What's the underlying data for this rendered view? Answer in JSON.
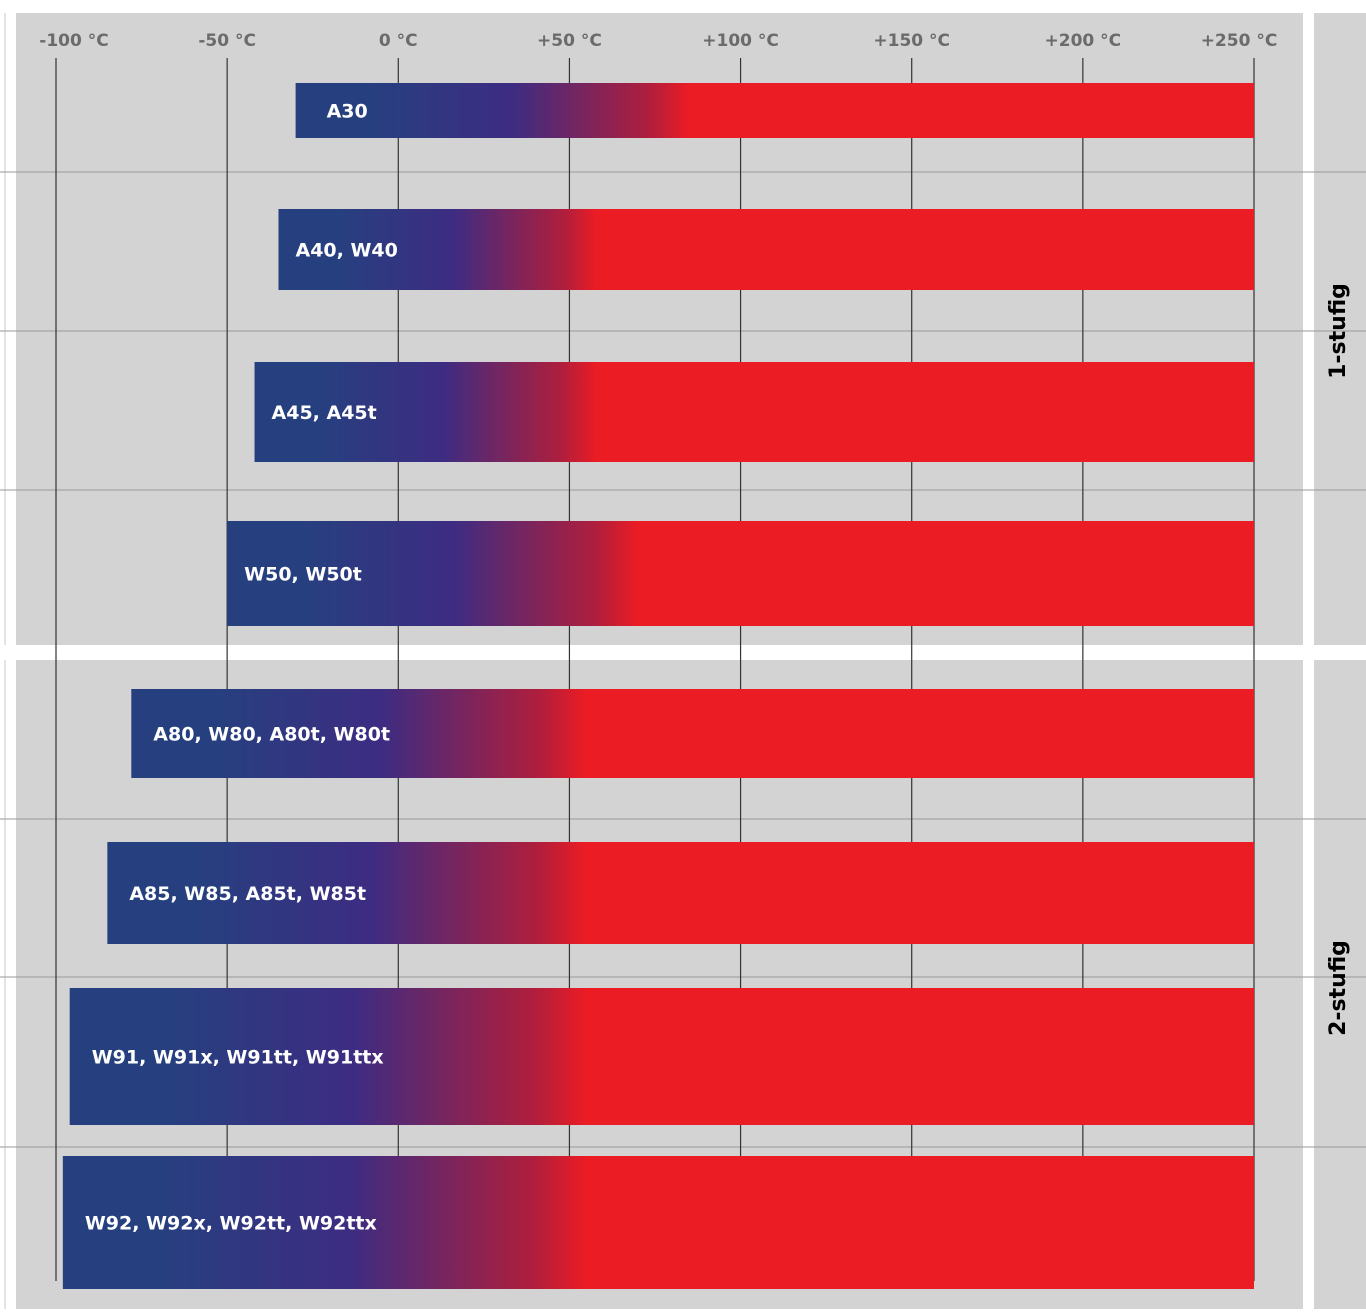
{
  "chart_data": {
    "type": "bar",
    "orientation": "horizontal",
    "xunit": "°C",
    "xlim": [
      -100,
      250
    ],
    "ticks": [
      {
        "value": -100,
        "label": "-100 °C"
      },
      {
        "value": -50,
        "label": "-50 °C"
      },
      {
        "value": 0,
        "label": "0 °C"
      },
      {
        "value": 50,
        "label": "+50 °C"
      },
      {
        "value": 100,
        "label": "+100 °C"
      },
      {
        "value": 150,
        "label": "+150 °C"
      },
      {
        "value": 200,
        "label": "+200 °C"
      },
      {
        "value": 250,
        "label": "+250 °C"
      }
    ],
    "groups": [
      {
        "label": "1-stufig",
        "bars": [
          {
            "label": "A30",
            "start": -30,
            "end": 250
          },
          {
            "label": "A40, W40",
            "start": -35,
            "end": 250
          },
          {
            "label": "A45, A45t",
            "start": -42,
            "end": 250
          },
          {
            "label": "W50, W50t",
            "start": -50,
            "end": 250
          }
        ]
      },
      {
        "label": "2-stufig",
        "bars": [
          {
            "label": "A80, W80, A80t, W80t",
            "start": -78,
            "end": 250
          },
          {
            "label": "A85, W85, A85t, W85t",
            "start": -85,
            "end": 250
          },
          {
            "label": "W91, W91x, W91tt, W91ttx",
            "start": -96,
            "end": 250
          },
          {
            "label": "W92, W92x, W92tt, W92ttx",
            "start": -98,
            "end": 250
          }
        ]
      }
    ],
    "colors": {
      "panel": "#d3d3d3",
      "cold": "#26407f",
      "mid": "#3d2c82",
      "hot": "#ec1c24",
      "grid": "#333333",
      "separator": "#9a9a9a"
    }
  }
}
